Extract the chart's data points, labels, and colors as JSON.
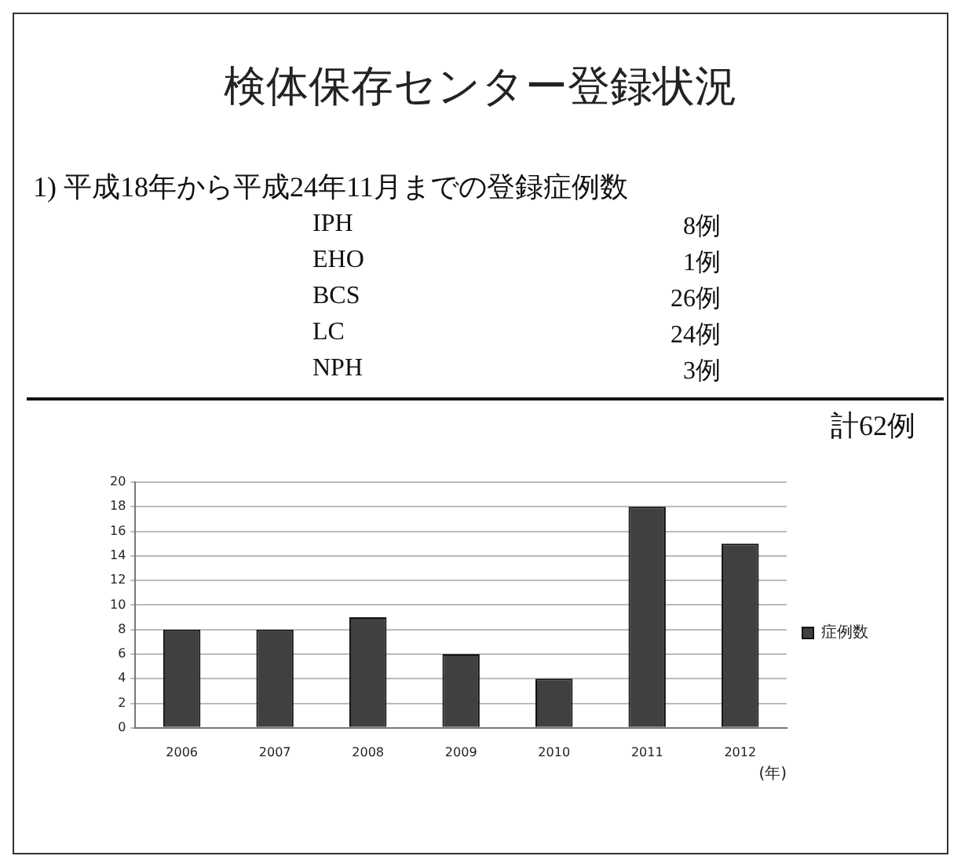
{
  "chart_data": {
    "type": "bar",
    "title": "検体保存センター登録状況",
    "subtitle": "1) 平成18年から平成24年11月までの登録症例数",
    "annotations": [
      "IPH",
      "8例",
      "EHO",
      "1例",
      "BCS",
      "26例",
      "LC",
      "24例",
      "NPH",
      "3例",
      "計62例"
    ],
    "categories": [
      "2006",
      "2007",
      "2008",
      "2009",
      "2010",
      "2011",
      "2012"
    ],
    "series": [
      {
        "name": "症例数",
        "color": "#404040",
        "values": [
          8,
          8,
          9,
          6,
          4,
          18,
          15
        ]
      }
    ],
    "xlabel": "(年)",
    "ylim": [
      0,
      20
    ],
    "yticks": [
      0,
      2,
      4,
      6,
      8,
      10,
      12,
      14,
      16,
      18,
      20
    ],
    "grid": "y",
    "legend": "right"
  }
}
